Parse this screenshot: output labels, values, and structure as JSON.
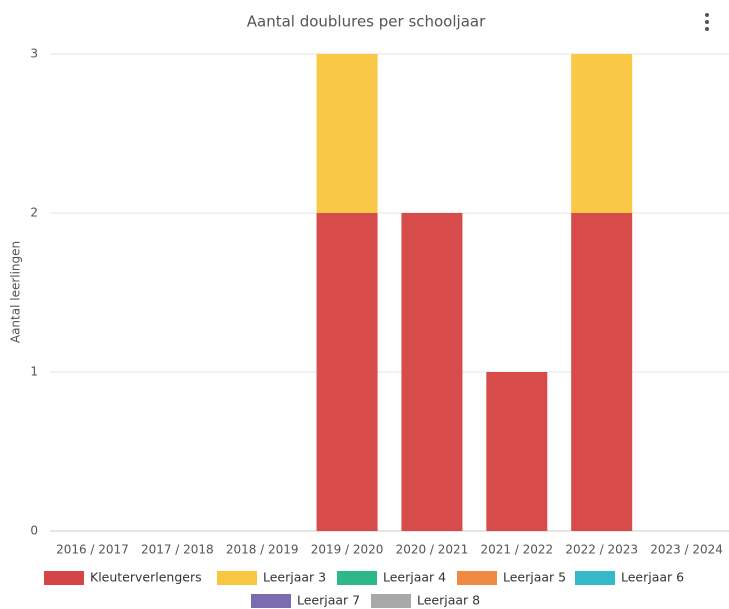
{
  "chart_data": {
    "type": "bar",
    "stacked": true,
    "title": "Aantal doublures per schooljaar",
    "y_label": "Aantal leerlingen",
    "categories": [
      "2016 / 2017",
      "2017 / 2018",
      "2018 / 2019",
      "2019 / 2020",
      "2020 / 2021",
      "2021 / 2022",
      "2022 / 2023",
      "2023 / 2024"
    ],
    "series": [
      {
        "name": "Kleuterverlengers",
        "color": "#d64545",
        "values": [
          0,
          0,
          0,
          2,
          2,
          1,
          2,
          0
        ]
      },
      {
        "name": "Leerjaar 3",
        "color": "#f9c63f",
        "values": [
          0,
          0,
          0,
          1,
          0,
          0,
          1,
          0
        ]
      },
      {
        "name": "Leerjaar 4",
        "color": "#2db78a",
        "values": [
          0,
          0,
          0,
          0,
          0,
          0,
          0,
          0
        ]
      },
      {
        "name": "Leerjaar 5",
        "color": "#f08a40",
        "values": [
          0,
          0,
          0,
          0,
          0,
          0,
          0,
          0
        ]
      },
      {
        "name": "Leerjaar 6",
        "color": "#35b8c8",
        "values": [
          0,
          0,
          0,
          0,
          0,
          0,
          0,
          0
        ]
      },
      {
        "name": "Leerjaar 7",
        "color": "#7b6bb0",
        "values": [
          0,
          0,
          0,
          0,
          0,
          0,
          0,
          0
        ]
      },
      {
        "name": "Leerjaar 8",
        "color": "#a8a8a8",
        "values": [
          0,
          0,
          0,
          0,
          0,
          0,
          0,
          0
        ]
      }
    ],
    "ylim": [
      0,
      3
    ],
    "yticks": [
      0,
      1,
      2,
      3
    ],
    "grid": true
  }
}
